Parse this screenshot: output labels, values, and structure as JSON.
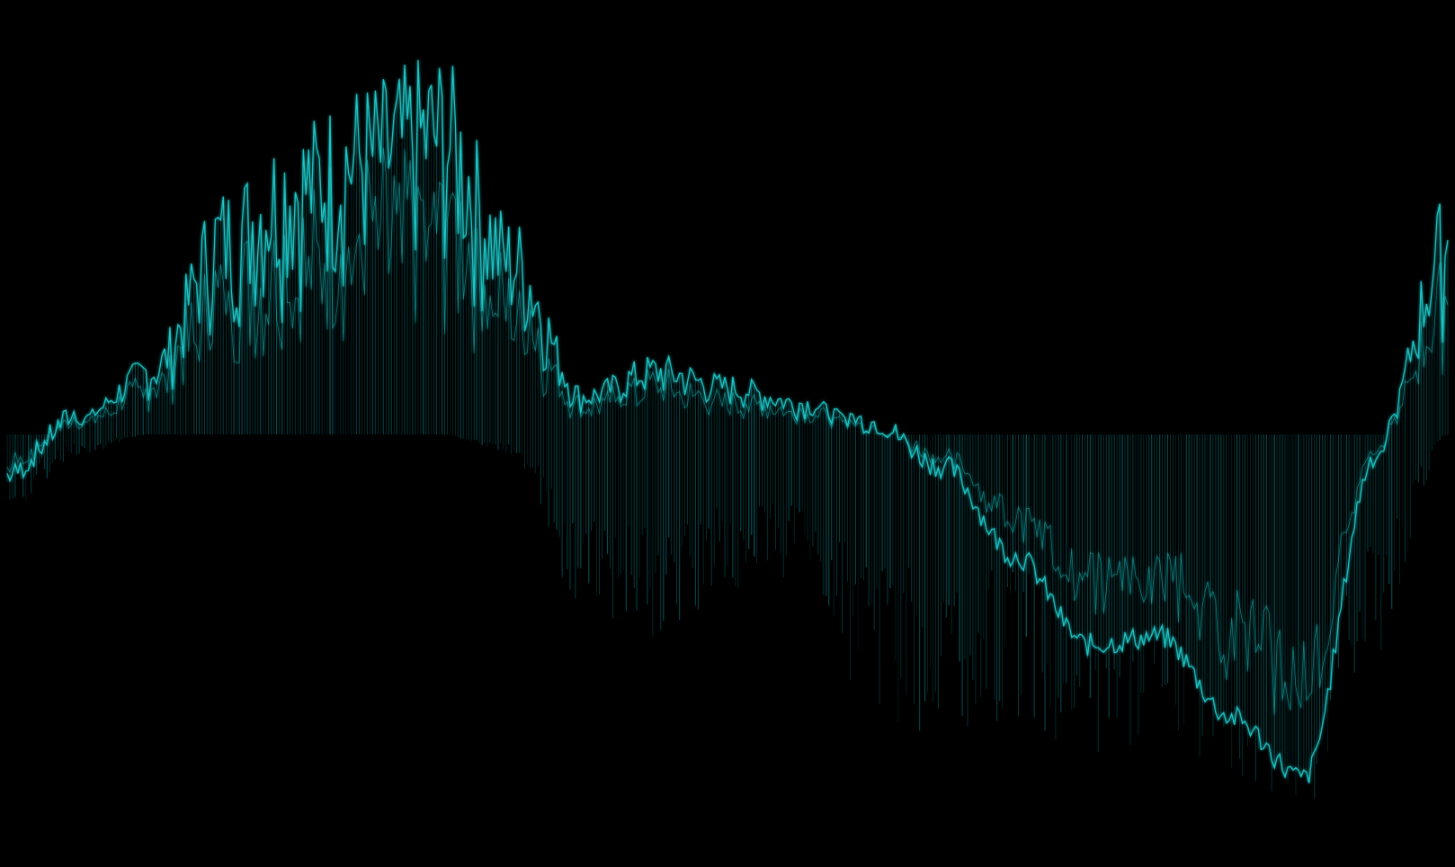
{
  "visualizer": {
    "background_color": "#000000",
    "wave_color": "#1fd6d6",
    "glow_color": "#0b8f94",
    "style": "oscilloscope waveform with vertical trails"
  },
  "chart_data": {
    "type": "line",
    "x": [
      0.0,
      0.05,
      0.1,
      0.15,
      0.2,
      0.25,
      0.3,
      0.35,
      0.4,
      0.45,
      0.5,
      0.55,
      0.6,
      0.65,
      0.7,
      0.75,
      0.8,
      0.85,
      0.9,
      0.95,
      1.0
    ],
    "series": [
      {
        "values": [
          -0.1,
          0.05,
          0.2,
          0.62,
          0.78,
          0.88,
          0.95,
          0.55,
          0.12,
          0.2,
          0.15,
          0.1,
          0.03,
          -0.08,
          -0.3,
          -0.52,
          -0.5,
          -0.7,
          -0.85,
          -0.05,
          0.6
        ],
        "values_min": [
          -0.2,
          -0.05,
          0.0,
          0.0,
          0.0,
          0.0,
          0.0,
          -0.05,
          -0.45,
          -0.5,
          -0.4,
          -0.35,
          -0.7,
          -0.75,
          -0.72,
          -0.8,
          -0.75,
          -0.85,
          -0.95,
          -0.55,
          0.0
        ]
      }
    ],
    "ylim": [
      -1,
      1
    ],
    "grid": false,
    "legend": "none"
  }
}
